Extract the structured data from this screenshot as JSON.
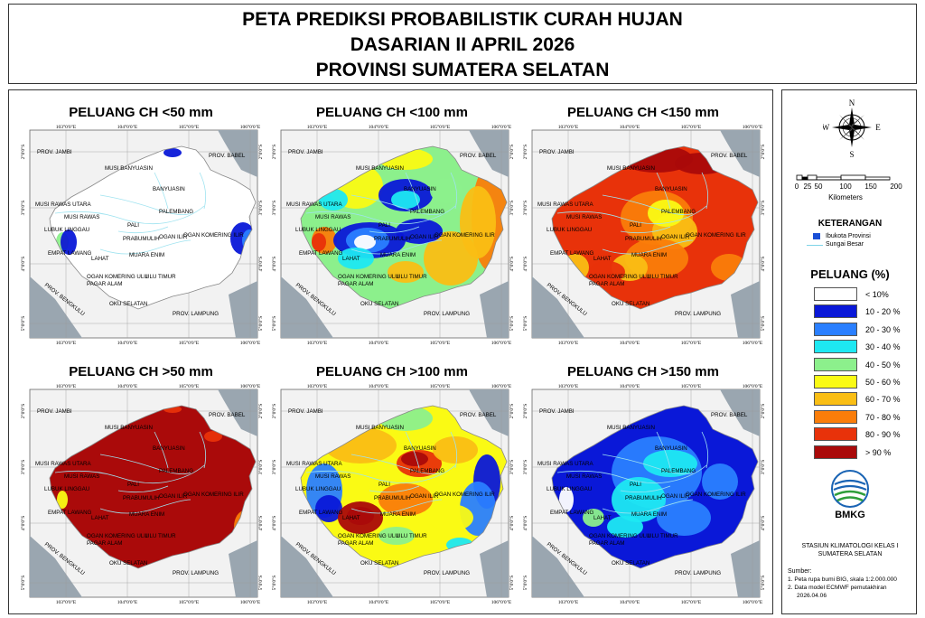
{
  "title": {
    "line1": "PETA PREDIKSI PROBABILISTIK CURAH HUJAN",
    "line2": "DASARIAN II APRIL 2026",
    "line3": "PROVINSI SUMATERA SELATAN"
  },
  "maps": [
    {
      "title": "PELUANG CH <50 mm"
    },
    {
      "title": "PELUANG CH <100 mm"
    },
    {
      "title": "PELUANG CH <150 mm"
    },
    {
      "title": "PELUANG CH >50 mm"
    },
    {
      "title": "PELUANG CH >100 mm"
    },
    {
      "title": "PELUANG CH >150 mm"
    }
  ],
  "ticks": {
    "lon": [
      "103°0'0\"E",
      "104°0'0\"E",
      "105°0'0\"E",
      "106°0'0\"E"
    ],
    "lat": [
      "2°0'0\"S",
      "3°0'0\"S",
      "4°0'0\"S",
      "5°0'0\"S"
    ]
  },
  "place_labels": {
    "jambi": "PROV. JAMBI",
    "babel": "PROV. BABEL",
    "musi_banyuasin": "MUSI BANYUASIN",
    "banyuasin": "BANYUASIN",
    "musi_rawas_utara": "MUSI RAWAS UTARA",
    "musi_rawas": "MUSI RAWAS",
    "palembang": "PALEMBANG",
    "lubuk_linggau": "LUBUK LINGGAU",
    "pali": "PALI",
    "prabumulih": "PRABUMULIH",
    "ogan_ilir": "OGAN ILIR",
    "ogan_komering_ilir": "OGAN KOMERING ILIR",
    "empat_lawang": "EMPAT LAWANG",
    "lahat": "LAHAT",
    "muara_enim": "MUARA ENIM",
    "okut": "OGAN KOMERING ULU",
    "uluk_timur": "ULU TIMUR",
    "pagar_alam": "PAGAR ALAM",
    "bengkulu": "PROV. BENGKULU",
    "oku_selatan": "OKU SELATAN",
    "lampung": "PROV. LAMPUNG"
  },
  "compass": {
    "n": "N",
    "s": "S",
    "e": "E",
    "w": "W"
  },
  "scale": {
    "ticks": [
      "0",
      "25",
      "50",
      "100",
      "150",
      "200"
    ],
    "unit": "Kilometers"
  },
  "keterangan": {
    "title": "KETERANGAN",
    "items": [
      {
        "label": "Ibukota Provinsi",
        "color": "#1a4fd6"
      },
      {
        "label": "Sungai Besar",
        "color": "#7fd3e8"
      }
    ]
  },
  "peluang": {
    "title": "PELUANG (%)",
    "classes": [
      {
        "label": "< 10%",
        "color": "#ffffff"
      },
      {
        "label": "10 - 20 %",
        "color": "#0a18d8"
      },
      {
        "label": "20 - 30 %",
        "color": "#2a7fff"
      },
      {
        "label": "30 - 40 %",
        "color": "#1ee8f2"
      },
      {
        "label": "40 - 50 %",
        "color": "#8cf08c"
      },
      {
        "label": "50 - 60 %",
        "color": "#fafa14"
      },
      {
        "label": "60 - 70 %",
        "color": "#fabe14"
      },
      {
        "label": "70 - 80 %",
        "color": "#fa7d0a"
      },
      {
        "label": "80 - 90 %",
        "color": "#e8320a"
      },
      {
        "label": "> 90 %",
        "color": "#aa0a0a"
      }
    ]
  },
  "logo": {
    "text": "BMKG"
  },
  "station": {
    "line1": "STASIUN KLIMATOLOGI KELAS I",
    "line2": "SUMATERA SELATAN"
  },
  "sumber": {
    "title": "Sumber:",
    "lines": [
      "1. Peta rupa bumi BIG, skala 1:2.000.000",
      "2. Data model ECMWF pemutakhiran",
      "2026.04.06"
    ]
  },
  "colors": {
    "land_outside": "#f2f2f2",
    "sea": "#9aa6b0",
    "border": "#666666"
  }
}
